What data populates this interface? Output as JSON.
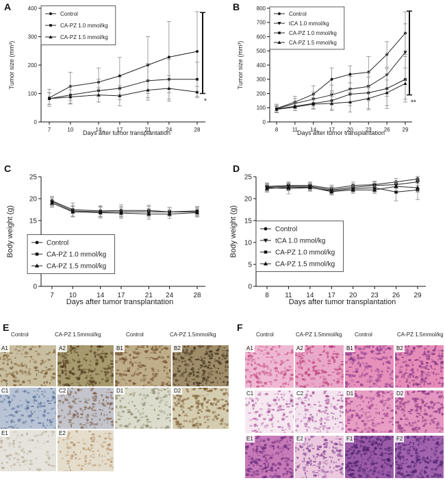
{
  "panel_labels": {
    "a": "A",
    "b": "B",
    "c": "C",
    "d": "D",
    "e": "E",
    "f": "F"
  },
  "chart_data": [
    {
      "id": "A",
      "type": "line",
      "xlabel": "Days after tumor transplantation",
      "ylabel": "Tumor size (mm³)",
      "ylim": [
        0,
        400
      ],
      "yticks": [
        0,
        100,
        200,
        300,
        400
      ],
      "x": [
        7,
        10,
        14,
        17,
        21,
        24,
        28
      ],
      "series": [
        {
          "name": "Control",
          "marker": "circle",
          "values": [
            85,
            125,
            140,
            162,
            200,
            228,
            248
          ],
          "errors": [
            30,
            50,
            50,
            65,
            100,
            125,
            140
          ]
        },
        {
          "name": "CA-PZ 1.0 mmol/kg",
          "marker": "square",
          "values": [
            82,
            95,
            110,
            118,
            145,
            150,
            150
          ],
          "errors": [
            20,
            30,
            40,
            40,
            60,
            70,
            60
          ]
        },
        {
          "name": "CA-PZ 1.5 mmol/kg",
          "marker": "triangle",
          "values": [
            82,
            88,
            95,
            92,
            112,
            118,
            105
          ],
          "errors": [
            20,
            25,
            25,
            35,
            35,
            45,
            20
          ]
        }
      ],
      "significance": {
        "text": "*",
        "range": [
          100,
          385
        ]
      }
    },
    {
      "id": "B",
      "type": "line",
      "xlabel": "Days after tumor transplantation",
      "ylabel": "Tumor size (mm³)",
      "ylim": [
        0,
        800
      ],
      "yticks": [
        0,
        100,
        200,
        300,
        400,
        500,
        600,
        700,
        800
      ],
      "x": [
        8,
        11,
        14,
        17,
        20,
        23,
        26,
        29
      ],
      "series": [
        {
          "name": "Control",
          "marker": "circle",
          "values": [
            95,
            140,
            195,
            300,
            335,
            350,
            475,
            625
          ],
          "errors": [
            30,
            40,
            60,
            80,
            60,
            110,
            90,
            150
          ]
        },
        {
          "name": "tCA 1.0 mmol/kg",
          "marker": "tridown",
          "values": [
            92,
            130,
            160,
            190,
            230,
            250,
            330,
            490
          ],
          "errors": [
            25,
            35,
            50,
            70,
            90,
            100,
            150,
            200
          ]
        },
        {
          "name": "CA-PZ 1.0 mmol/kg",
          "marker": "square",
          "values": [
            90,
            110,
            130,
            150,
            195,
            205,
            235,
            300
          ],
          "errors": [
            20,
            30,
            40,
            60,
            80,
            110,
            140,
            160
          ]
        },
        {
          "name": "CA-PZ 1.5 mmol/kg",
          "marker": "triangle",
          "values": [
            88,
            105,
            125,
            130,
            140,
            165,
            205,
            270
          ],
          "errors": [
            20,
            25,
            30,
            50,
            70,
            80,
            90,
            110
          ]
        }
      ],
      "significance": {
        "text": "**",
        "range": [
          190,
          780
        ]
      }
    },
    {
      "id": "C",
      "type": "line",
      "xlabel": "Days after tumor transplantation",
      "ylabel": "Body weight (g)",
      "ylim": [
        0,
        25
      ],
      "yticks": [
        0,
        5,
        10,
        15,
        20,
        25
      ],
      "x": [
        7,
        10,
        14,
        17,
        21,
        24,
        28
      ],
      "series": [
        {
          "name": "Control",
          "marker": "circle",
          "values": [
            19.5,
            17.5,
            17.2,
            17.3,
            17.3,
            17.0,
            17.0
          ],
          "errors": [
            1.0,
            1.5,
            1.2,
            1.3,
            1.2,
            1.0,
            1.0
          ]
        },
        {
          "name": "CA-PZ 1.0 mmol/kg",
          "marker": "square",
          "values": [
            19.3,
            17.2,
            17.0,
            17.0,
            17.0,
            17.0,
            17.2
          ],
          "errors": [
            1.0,
            1.2,
            1.2,
            1.2,
            1.2,
            1.0,
            1.0
          ]
        },
        {
          "name": "CA-PZ 1.5 mmol/kg",
          "marker": "triangle",
          "values": [
            19.0,
            17.0,
            16.8,
            16.7,
            16.5,
            16.5,
            16.8
          ],
          "errors": [
            1.0,
            1.2,
            1.2,
            1.2,
            1.2,
            1.0,
            1.0
          ]
        }
      ]
    },
    {
      "id": "D",
      "type": "line",
      "xlabel": "Days after tumor transplantation",
      "ylabel": "Body weight (g)",
      "ylim": [
        0,
        25
      ],
      "yticks": [
        0,
        5,
        10,
        15,
        20,
        25
      ],
      "x": [
        8,
        11,
        14,
        17,
        20,
        23,
        26,
        29
      ],
      "series": [
        {
          "name": "Control",
          "marker": "circle",
          "values": [
            22.8,
            23.0,
            23.0,
            22.3,
            23.0,
            23.2,
            23.8,
            24.5
          ],
          "errors": [
            0.8,
            0.8,
            0.8,
            0.8,
            0.8,
            0.8,
            0.8,
            0.6
          ]
        },
        {
          "name": "tCA 1.0 mmol/kg",
          "marker": "tridown",
          "values": [
            22.6,
            22.8,
            22.8,
            22.0,
            22.6,
            23.0,
            23.2,
            23.8
          ],
          "errors": [
            0.8,
            0.8,
            0.8,
            0.8,
            0.8,
            0.8,
            0.8,
            0.8
          ]
        },
        {
          "name": "CA-PZ 1.0 mmol/kg",
          "marker": "square",
          "values": [
            22.5,
            22.3,
            22.5,
            21.8,
            22.3,
            22.5,
            21.5,
            22.0
          ],
          "errors": [
            0.8,
            1.2,
            0.8,
            0.8,
            0.8,
            1.0,
            2.0,
            2.2
          ]
        },
        {
          "name": "CA-PZ 1.5 mmol/kg",
          "marker": "triangle",
          "values": [
            22.3,
            22.6,
            22.6,
            21.6,
            22.0,
            22.0,
            22.8,
            22.5
          ],
          "errors": [
            0.8,
            0.8,
            0.8,
            0.8,
            0.8,
            0.8,
            1.0,
            1.0
          ]
        }
      ]
    }
  ],
  "histology_e": {
    "titles": [
      "Control",
      "CA-PZ 1.5mmol/kg",
      "Control",
      "CA-PZ 1.5mmol/kg"
    ],
    "tiles": [
      {
        "label": "A1",
        "base": "#c9bfa0",
        "dot": "#7a5a32",
        "density": 0.5
      },
      {
        "label": "A2",
        "base": "#a79a6e",
        "dot": "#4f3a1c",
        "density": 0.9
      },
      {
        "label": "B1",
        "base": "#c0ae8a",
        "dot": "#6b4a26",
        "density": 0.7
      },
      {
        "label": "B2",
        "base": "#9f8d6a",
        "dot": "#3f2c18",
        "density": 1.0
      },
      {
        "label": "C1",
        "base": "#b8c4d6",
        "dot": "#5b6f95",
        "density": 0.5
      },
      {
        "label": "C2",
        "base": "#c3c4cc",
        "dot": "#7a5a42",
        "density": 0.6
      },
      {
        "label": "D1",
        "base": "#dcdccd",
        "dot": "#8a8468",
        "density": 0.4
      },
      {
        "label": "D2",
        "base": "#d5cdb0",
        "dot": "#7a5a30",
        "density": 0.7
      },
      {
        "label": "E1",
        "base": "#e6e3dc",
        "dot": "#b5aa96",
        "density": 0.15
      },
      {
        "label": "E2",
        "base": "#e5ddcc",
        "dot": "#b08a5c",
        "density": 0.25
      }
    ]
  },
  "histology_f": {
    "titles": [
      "Control",
      "CA-PZ 1.5mmol/kg",
      "Control",
      "CA-PZ 1.5mmol/kg"
    ],
    "tiles": [
      {
        "label": "A1",
        "base": "#efb8d2",
        "dot": "#c2477f",
        "density": 0.5
      },
      {
        "label": "A2",
        "base": "#eaa8c8",
        "dot": "#b93a78",
        "density": 0.6
      },
      {
        "label": "B1",
        "base": "#e690bb",
        "dot": "#8c3a8c",
        "density": 0.8
      },
      {
        "label": "B2",
        "base": "#e68cb8",
        "dot": "#7a2f80",
        "density": 0.8
      },
      {
        "label": "C1",
        "base": "#f6e7f0",
        "dot": "#a8509a",
        "density": 0.35
      },
      {
        "label": "C2",
        "base": "#f4e2ee",
        "dot": "#9c4892",
        "density": 0.4
      },
      {
        "label": "D1",
        "base": "#e89ec4",
        "dot": "#9a3a8a",
        "density": 0.7
      },
      {
        "label": "D2",
        "base": "#e596c0",
        "dot": "#8c3484",
        "density": 0.75
      },
      {
        "label": "E1",
        "base": "#c77ab8",
        "dot": "#6a2a7c",
        "density": 0.8
      },
      {
        "label": "E2",
        "base": "#ebc8de",
        "dot": "#7e3a90",
        "density": 0.6
      },
      {
        "label": "F1",
        "base": "#9a5aa8",
        "dot": "#4a1f68",
        "density": 0.9
      },
      {
        "label": "F2",
        "base": "#a263ae",
        "dot": "#4e2270",
        "density": 0.9
      }
    ]
  }
}
